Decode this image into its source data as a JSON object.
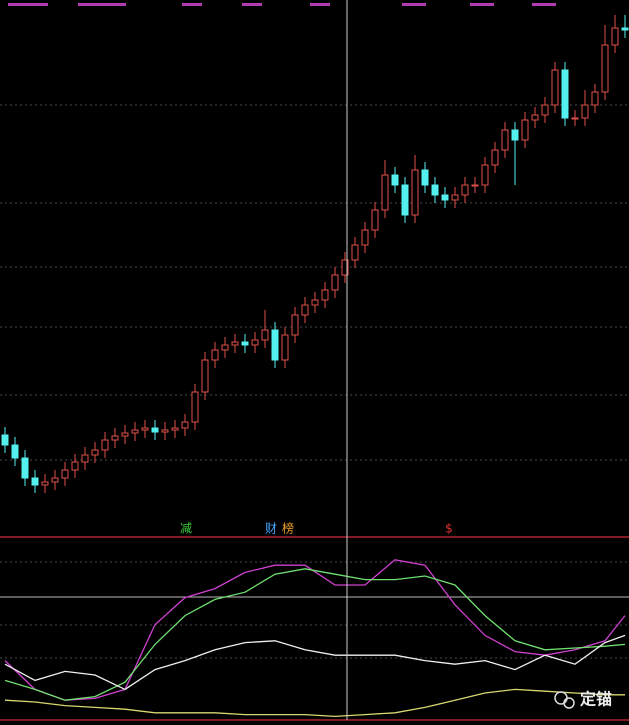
{
  "chart_data": [
    {
      "type": "candlestick",
      "ylim": [
        0,
        535
      ],
      "series": [
        {
          "name": "open",
          "values": [
            100,
            90,
            77,
            57,
            50,
            53,
            57,
            65,
            73,
            80,
            85,
            95,
            99,
            102,
            105,
            107,
            103,
            105,
            107,
            113,
            143,
            175,
            185,
            190,
            193,
            190,
            195,
            205,
            175,
            200,
            220,
            230,
            235,
            245,
            260,
            275,
            290,
            305,
            325,
            360,
            350,
            320,
            365,
            350,
            340,
            335,
            340,
            350,
            350,
            370,
            385,
            405,
            395,
            415,
            420,
            430,
            465,
            417,
            417,
            430,
            443,
            490,
            507
          ]
        },
        {
          "name": "high",
          "values": [
            108,
            98,
            85,
            65,
            61,
            65,
            73,
            81,
            88,
            93,
            103,
            107,
            110,
            113,
            115,
            115,
            113,
            115,
            121,
            151,
            183,
            193,
            198,
            201,
            201,
            203,
            225,
            213,
            208,
            228,
            238,
            243,
            253,
            268,
            283,
            298,
            313,
            333,
            375,
            368,
            358,
            380,
            373,
            358,
            348,
            348,
            358,
            358,
            378,
            393,
            413,
            413,
            423,
            428,
            438,
            473,
            473,
            425,
            445,
            451,
            510,
            520,
            520
          ]
        },
        {
          "name": "low",
          "values": [
            82,
            69,
            49,
            42,
            42,
            45,
            49,
            57,
            65,
            72,
            77,
            87,
            91,
            94,
            97,
            95,
            95,
            97,
            99,
            105,
            135,
            167,
            177,
            182,
            182,
            182,
            187,
            167,
            167,
            192,
            212,
            222,
            227,
            237,
            252,
            267,
            282,
            297,
            317,
            342,
            312,
            312,
            342,
            332,
            327,
            327,
            332,
            342,
            342,
            362,
            377,
            350,
            387,
            407,
            412,
            422,
            409,
            409,
            409,
            422,
            435,
            482,
            497
          ]
        },
        {
          "name": "close",
          "values": [
            90,
            77,
            57,
            50,
            53,
            57,
            65,
            73,
            80,
            85,
            95,
            99,
            102,
            105,
            107,
            103,
            105,
            107,
            113,
            143,
            175,
            185,
            190,
            193,
            190,
            195,
            205,
            175,
            200,
            220,
            230,
            235,
            245,
            260,
            275,
            290,
            305,
            325,
            360,
            350,
            320,
            365,
            350,
            340,
            335,
            340,
            350,
            350,
            370,
            385,
            405,
            395,
            415,
            420,
            430,
            465,
            417,
            417,
            430,
            443,
            490,
            507,
            505
          ]
        }
      ],
      "up_color": "#e0504a",
      "down_color": "#54f0f0",
      "annotations": [
        {
          "text": "减",
          "color": "#3ecf3e"
        },
        {
          "text": "财",
          "color": "#4aa8ff"
        },
        {
          "text": "榜",
          "color": "#f0a030"
        },
        {
          "text": "$",
          "color": "#e03030"
        }
      ]
    },
    {
      "type": "line",
      "x": [
        0,
        3,
        6,
        9,
        12,
        15,
        18,
        21,
        24,
        27,
        30,
        33,
        36,
        39,
        42,
        45,
        48,
        51,
        54,
        57,
        60,
        62
      ],
      "xlim": [
        0,
        62
      ],
      "ylim": [
        0,
        100
      ],
      "series": [
        {
          "color": "#d040d0",
          "values": [
            33,
            17,
            11,
            12,
            17,
            53,
            68,
            73,
            82,
            86,
            86,
            75,
            75,
            89,
            86,
            64,
            47,
            38,
            36,
            39,
            44,
            58
          ]
        },
        {
          "color": "#70e070",
          "values": [
            22,
            17,
            11,
            13,
            21,
            42,
            58,
            67,
            71,
            81,
            84,
            81,
            78,
            78,
            80,
            75,
            58,
            44,
            39,
            40,
            41,
            42
          ]
        },
        {
          "color": "#f0f0f0",
          "values": [
            31,
            22,
            27,
            25,
            17,
            28,
            33,
            39,
            43,
            44,
            39,
            36,
            36,
            36,
            33,
            31,
            33,
            28,
            36,
            31,
            43,
            47
          ]
        },
        {
          "color": "#d8d870",
          "values": [
            11,
            10,
            8,
            7,
            6,
            4,
            4,
            4,
            3,
            3,
            3,
            2,
            3,
            4,
            7,
            11,
            15,
            17,
            16,
            15,
            14,
            14
          ]
        }
      ]
    }
  ],
  "watermark": "定锚"
}
